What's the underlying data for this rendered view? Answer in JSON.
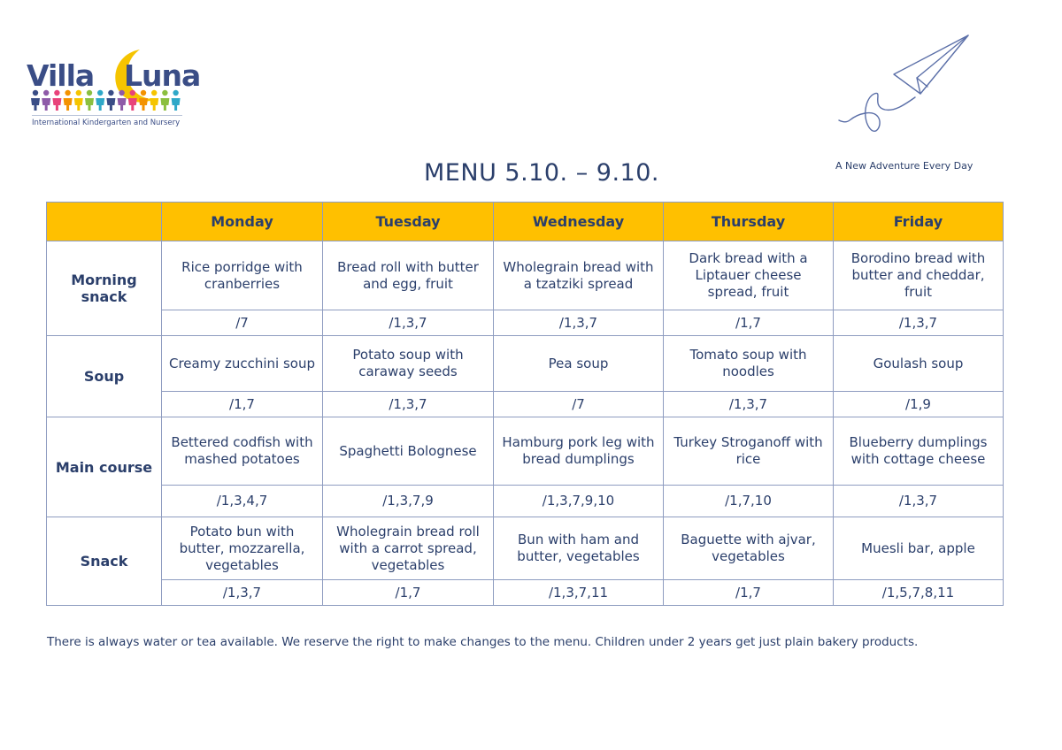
{
  "logo": {
    "word1": "Villa",
    "word2": "Luna",
    "subtitle": "International Kindergarten and Nursery",
    "moon_color": "#f5c400",
    "kid_colors": [
      "#3a4d86",
      "#8e5aa8",
      "#e8437a",
      "#f39200",
      "#f5c400",
      "#8bbf3f",
      "#2fa8c8"
    ]
  },
  "tagline": "A New Adventure Every Day",
  "title": "MENU 5.10. – 9.10.",
  "header_color": "#ffc000",
  "days": [
    "Monday",
    "Tuesday",
    "Wednesday",
    "Thursday",
    "Friday"
  ],
  "sections": [
    {
      "label": "Morning snack",
      "dishes": [
        "Rice porridge with cranberries",
        "Bread roll with butter and egg, fruit",
        "Wholegrain bread with a tzatziki spread",
        "Dark bread with a Liptauer cheese spread, fruit",
        "Borodino bread with butter and cheddar, fruit"
      ],
      "allergens": [
        "/7",
        "/1,3,7",
        "/1,3,7",
        "/1,7",
        "/1,3,7"
      ]
    },
    {
      "label": "Soup",
      "dishes": [
        "Creamy zucchini soup",
        "Potato soup with caraway seeds",
        "Pea soup",
        "Tomato soup with noodles",
        "Goulash soup"
      ],
      "allergens": [
        "/1,7",
        "/1,3,7",
        "/7",
        "/1,3,7",
        "/1,9"
      ]
    },
    {
      "label": "Main course",
      "dishes": [
        "Bettered codfish with mashed potatoes",
        "Spaghetti Bolognese",
        "Hamburg pork leg with bread dumplings",
        "Turkey Stroganoff with rice",
        "Blueberry dumplings with cottage cheese"
      ],
      "allergens": [
        "/1,3,4,7",
        "/1,3,7,9",
        "/1,3,7,9,10",
        "/1,7,10",
        "/1,3,7"
      ]
    },
    {
      "label": "Snack",
      "dishes": [
        "Potato bun with butter, mozzarella, vegetables",
        "Wholegrain bread roll with a carrot spread, vegetables",
        "Bun with ham and butter, vegetables",
        "Baguette with ajvar, vegetables",
        "Muesli bar, apple"
      ],
      "allergens": [
        "/1,3,7",
        "/1,7",
        "/1,3,7,11",
        "/1,7",
        "/1,5,7,8,11"
      ]
    }
  ],
  "footer": "There is always water or tea available.  We reserve the right to make changes to the menu. Children under 2 years get just plain bakery products."
}
